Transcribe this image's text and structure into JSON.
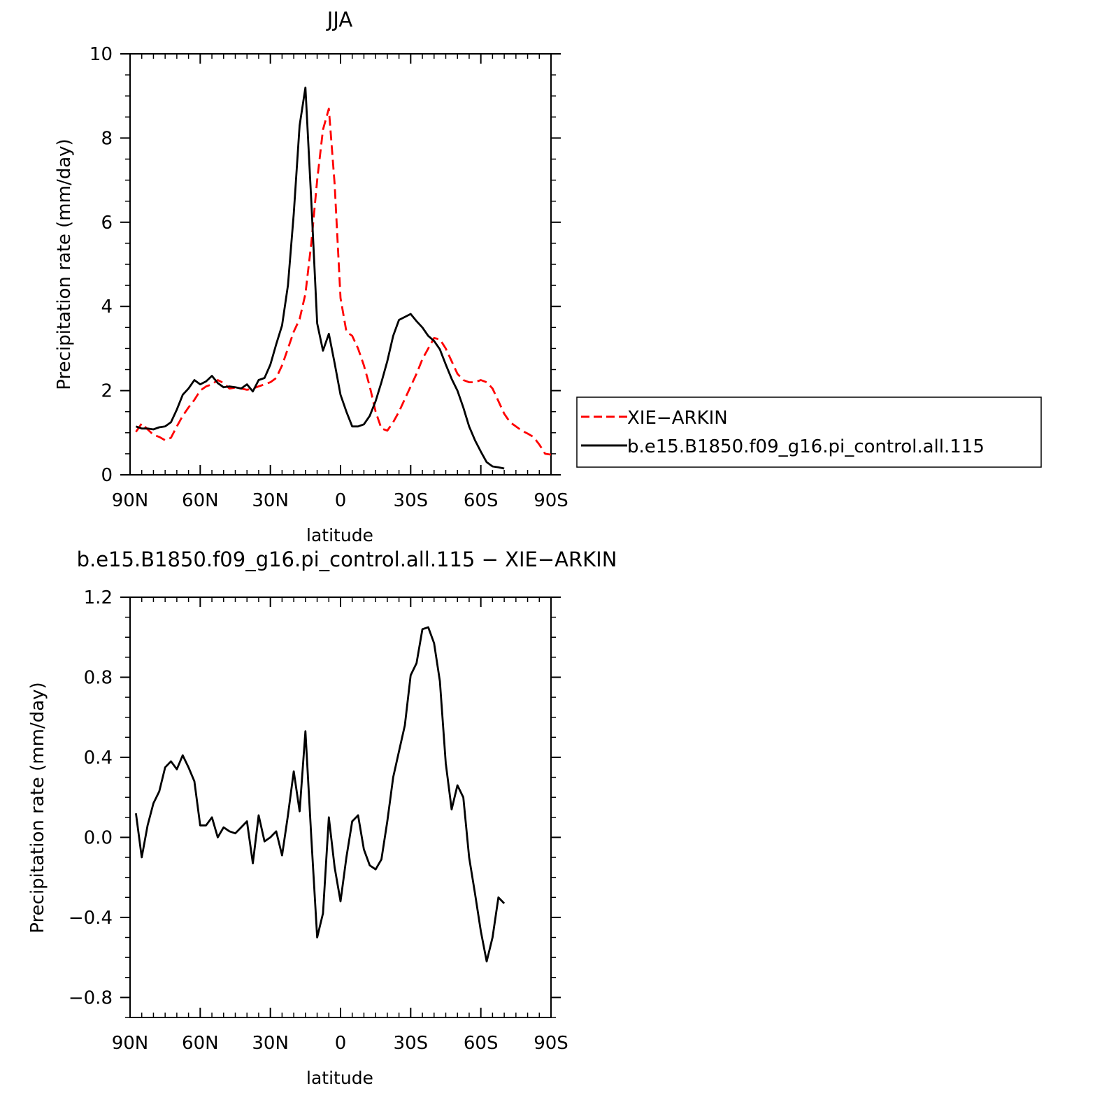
{
  "chart_data": [
    {
      "type": "line",
      "title": "JJA",
      "xlabel": "latitude",
      "ylabel": "Precipitation rate (mm/day)",
      "xlim": [
        90,
        -90
      ],
      "ylim": [
        0,
        10
      ],
      "x_ticks": [
        {
          "value": 90,
          "label": "90N"
        },
        {
          "value": 60,
          "label": "60N"
        },
        {
          "value": 30,
          "label": "30N"
        },
        {
          "value": 0,
          "label": "0"
        },
        {
          "value": -30,
          "label": "30S"
        },
        {
          "value": -60,
          "label": "60S"
        },
        {
          "value": -90,
          "label": "90S"
        }
      ],
      "y_ticks": [
        {
          "value": 0,
          "label": "0"
        },
        {
          "value": 2,
          "label": "2"
        },
        {
          "value": 4,
          "label": "4"
        },
        {
          "value": 6,
          "label": "6"
        },
        {
          "value": 8,
          "label": "8"
        },
        {
          "value": 10,
          "label": "10"
        }
      ],
      "legend": {
        "placement": "right",
        "entries": [
          "XIE−ARKIN",
          "b.e15.B1850.f09_g16.pi_control.all.115"
        ]
      },
      "series": [
        {
          "name": "XIE−ARKIN",
          "color": "#ff0000",
          "dash": "dashed",
          "points": [
            [
              87.5,
              1.02
            ],
            [
              85,
              1.22
            ],
            [
              82.5,
              1.08
            ],
            [
              80,
              0.95
            ],
            [
              77.5,
              0.9
            ],
            [
              75,
              0.82
            ],
            [
              72.5,
              0.88
            ],
            [
              70,
              1.15
            ],
            [
              67.5,
              1.4
            ],
            [
              65,
              1.6
            ],
            [
              62.5,
              1.78
            ],
            [
              60,
              2.0
            ],
            [
              57.5,
              2.1
            ],
            [
              55,
              2.15
            ],
            [
              52.5,
              2.25
            ],
            [
              50,
              2.18
            ],
            [
              47.5,
              2.05
            ],
            [
              45,
              2.07
            ],
            [
              42.5,
              2.05
            ],
            [
              40,
              2.02
            ],
            [
              37.5,
              2.05
            ],
            [
              35,
              2.1
            ],
            [
              32.5,
              2.15
            ],
            [
              30,
              2.2
            ],
            [
              27.5,
              2.3
            ],
            [
              25,
              2.6
            ],
            [
              22.5,
              3.0
            ],
            [
              20,
              3.4
            ],
            [
              17.5,
              3.7
            ],
            [
              15,
              4.3
            ],
            [
              12.5,
              5.5
            ],
            [
              10,
              7.0
            ],
            [
              7.5,
              8.2
            ],
            [
              5,
              8.7
            ],
            [
              2.5,
              6.9
            ],
            [
              0,
              4.2
            ],
            [
              -2.5,
              3.4
            ],
            [
              -5,
              3.3
            ],
            [
              -7.5,
              3.0
            ],
            [
              -10,
              2.6
            ],
            [
              -12.5,
              2.1
            ],
            [
              -15,
              1.5
            ],
            [
              -17.5,
              1.1
            ],
            [
              -20,
              1.05
            ],
            [
              -22.5,
              1.25
            ],
            [
              -25,
              1.5
            ],
            [
              -27.5,
              1.8
            ],
            [
              -30,
              2.1
            ],
            [
              -32.5,
              2.4
            ],
            [
              -35,
              2.75
            ],
            [
              -37.5,
              3.0
            ],
            [
              -40,
              3.25
            ],
            [
              -42.5,
              3.22
            ],
            [
              -45,
              3.0
            ],
            [
              -47.5,
              2.7
            ],
            [
              -50,
              2.4
            ],
            [
              -52.5,
              2.25
            ],
            [
              -55,
              2.2
            ],
            [
              -57.5,
              2.2
            ],
            [
              -60,
              2.25
            ],
            [
              -62.5,
              2.2
            ],
            [
              -65,
              2.05
            ],
            [
              -67.5,
              1.75
            ],
            [
              -70,
              1.45
            ],
            [
              -72.5,
              1.25
            ],
            [
              -75,
              1.15
            ],
            [
              -77.5,
              1.05
            ],
            [
              -80,
              0.98
            ],
            [
              -82.5,
              0.9
            ],
            [
              -85,
              0.72
            ],
            [
              -87.5,
              0.5
            ],
            [
              -90,
              0.48
            ]
          ]
        },
        {
          "name": "b.e15.B1850.f09_g16.pi_control.all.115",
          "color": "#000000",
          "dash": "solid",
          "points": [
            [
              87.5,
              1.15
            ],
            [
              85,
              1.1
            ],
            [
              82.5,
              1.1
            ],
            [
              80,
              1.08
            ],
            [
              77.5,
              1.13
            ],
            [
              75,
              1.15
            ],
            [
              72.5,
              1.25
            ],
            [
              70,
              1.55
            ],
            [
              67.5,
              1.9
            ],
            [
              65,
              2.05
            ],
            [
              62.5,
              2.25
            ],
            [
              60,
              2.15
            ],
            [
              57.5,
              2.22
            ],
            [
              55,
              2.35
            ],
            [
              52.5,
              2.18
            ],
            [
              50,
              2.08
            ],
            [
              47.5,
              2.1
            ],
            [
              45,
              2.08
            ],
            [
              42.5,
              2.05
            ],
            [
              40,
              2.15
            ],
            [
              37.5,
              1.98
            ],
            [
              35,
              2.25
            ],
            [
              32.5,
              2.3
            ],
            [
              30,
              2.62
            ],
            [
              27.5,
              3.1
            ],
            [
              25,
              3.55
            ],
            [
              22.5,
              4.5
            ],
            [
              20,
              6.2
            ],
            [
              17.5,
              8.3
            ],
            [
              15,
              9.2
            ],
            [
              12.5,
              6.5
            ],
            [
              10,
              3.6
            ],
            [
              7.5,
              2.95
            ],
            [
              5,
              3.35
            ],
            [
              2.5,
              2.65
            ],
            [
              0,
              1.9
            ],
            [
              -2.5,
              1.5
            ],
            [
              -5,
              1.15
            ],
            [
              -7.5,
              1.15
            ],
            [
              -10,
              1.2
            ],
            [
              -12.5,
              1.4
            ],
            [
              -15,
              1.75
            ],
            [
              -17.5,
              2.2
            ],
            [
              -20,
              2.7
            ],
            [
              -22.5,
              3.3
            ],
            [
              -25,
              3.68
            ],
            [
              -27.5,
              3.75
            ],
            [
              -30,
              3.82
            ],
            [
              -32.5,
              3.65
            ],
            [
              -35,
              3.5
            ],
            [
              -37.5,
              3.3
            ],
            [
              -40,
              3.18
            ],
            [
              -42.5,
              2.98
            ],
            [
              -45,
              2.62
            ],
            [
              -47.5,
              2.28
            ],
            [
              -50,
              2.0
            ],
            [
              -52.5,
              1.6
            ],
            [
              -55,
              1.15
            ],
            [
              -57.5,
              0.82
            ],
            [
              -60,
              0.55
            ],
            [
              -62.5,
              0.3
            ],
            [
              -65,
              0.2
            ],
            [
              -67.5,
              0.18
            ],
            [
              -70,
              0.15
            ]
          ]
        }
      ]
    },
    {
      "type": "line",
      "title": "b.e15.B1850.f09_g16.pi_control.all.115 − XIE−ARKIN",
      "xlabel": "latitude",
      "ylabel": "Precipitation rate (mm/day)",
      "xlim": [
        90,
        -90
      ],
      "ylim": [
        -0.9,
        1.2
      ],
      "x_ticks": [
        {
          "value": 90,
          "label": "90N"
        },
        {
          "value": 60,
          "label": "60N"
        },
        {
          "value": 30,
          "label": "30N"
        },
        {
          "value": 0,
          "label": "0"
        },
        {
          "value": -30,
          "label": "30S"
        },
        {
          "value": -60,
          "label": "60S"
        },
        {
          "value": -90,
          "label": "90S"
        }
      ],
      "y_ticks": [
        {
          "value": -0.8,
          "label": "−0.8"
        },
        {
          "value": -0.4,
          "label": "−0.4"
        },
        {
          "value": 0.0,
          "label": "0.0"
        },
        {
          "value": 0.4,
          "label": "0.4"
        },
        {
          "value": 0.8,
          "label": "0.8"
        },
        {
          "value": 1.2,
          "label": "1.2"
        }
      ],
      "series": [
        {
          "color": "#000000",
          "dash": "solid",
          "points": [
            [
              87.5,
              0.12
            ],
            [
              85,
              -0.1
            ],
            [
              82.5,
              0.06
            ],
            [
              80,
              0.17
            ],
            [
              77.5,
              0.23
            ],
            [
              75,
              0.35
            ],
            [
              72.5,
              0.38
            ],
            [
              70,
              0.34
            ],
            [
              67.5,
              0.41
            ],
            [
              65,
              0.35
            ],
            [
              62.5,
              0.28
            ],
            [
              60,
              0.06
            ],
            [
              57.5,
              0.06
            ],
            [
              55,
              0.1
            ],
            [
              52.5,
              0.0
            ],
            [
              50,
              0.05
            ],
            [
              47.5,
              0.03
            ],
            [
              45,
              0.02
            ],
            [
              42.5,
              0.05
            ],
            [
              40,
              0.08
            ],
            [
              37.5,
              -0.13
            ],
            [
              35,
              0.11
            ],
            [
              32.5,
              -0.02
            ],
            [
              30,
              0.0
            ],
            [
              27.5,
              0.03
            ],
            [
              25,
              -0.09
            ],
            [
              22.5,
              0.11
            ],
            [
              20,
              0.33
            ],
            [
              17.5,
              0.13
            ],
            [
              15,
              0.53
            ],
            [
              12.5,
              0.0
            ],
            [
              10,
              -0.5
            ],
            [
              7.5,
              -0.38
            ],
            [
              5,
              0.1
            ],
            [
              2.5,
              -0.15
            ],
            [
              0,
              -0.32
            ],
            [
              -2.5,
              -0.1
            ],
            [
              -5,
              0.08
            ],
            [
              -7.5,
              0.11
            ],
            [
              -10,
              -0.06
            ],
            [
              -12.5,
              -0.14
            ],
            [
              -15,
              -0.16
            ],
            [
              -17.5,
              -0.11
            ],
            [
              -20,
              0.08
            ],
            [
              -22.5,
              0.3
            ],
            [
              -25,
              0.43
            ],
            [
              -27.5,
              0.56
            ],
            [
              -30,
              0.81
            ],
            [
              -32.5,
              0.87
            ],
            [
              -35,
              1.04
            ],
            [
              -37.5,
              1.05
            ],
            [
              -40,
              0.97
            ],
            [
              -42.5,
              0.78
            ],
            [
              -45,
              0.37
            ],
            [
              -47.5,
              0.14
            ],
            [
              -50,
              0.26
            ],
            [
              -52.5,
              0.2
            ],
            [
              -55,
              -0.1
            ],
            [
              -57.5,
              -0.28
            ],
            [
              -60,
              -0.47
            ],
            [
              -62.5,
              -0.62
            ],
            [
              -65,
              -0.5
            ],
            [
              -67.5,
              -0.3
            ],
            [
              -70,
              -0.33
            ]
          ]
        }
      ]
    }
  ]
}
